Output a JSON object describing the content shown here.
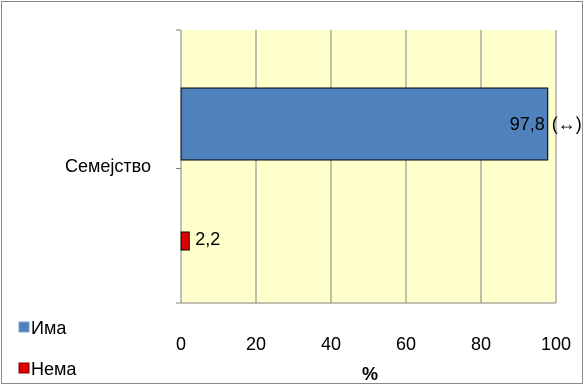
{
  "chart_data": {
    "type": "bar",
    "orientation": "horizontal",
    "categories": [
      "Семејство"
    ],
    "series": [
      {
        "name": "Има",
        "values": [
          97.8
        ],
        "value_label": "97,8",
        "value_suffix": "(↔)",
        "color": "#4f81bd"
      },
      {
        "name": "Нема",
        "values": [
          2.2
        ],
        "value_label": "2,2",
        "value_suffix": "",
        "color": "#e00000"
      }
    ],
    "xlabel": "%",
    "xlim": [
      0,
      100
    ],
    "xticks": [
      "0",
      "20",
      "40",
      "60",
      "80",
      "100"
    ],
    "grid": true,
    "plot_background": "#ffffcc",
    "legend": "bottom-left"
  }
}
